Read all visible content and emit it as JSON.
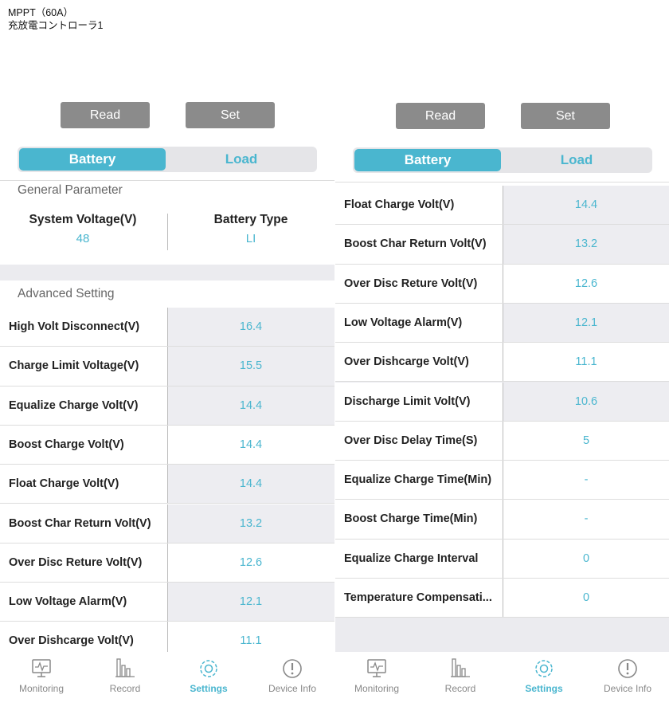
{
  "header": {
    "line1": "MPPT（60A）",
    "line2": "充放電コントローラ1"
  },
  "screens": [
    {
      "buttons": [
        "Read",
        "Set"
      ],
      "tabs": [
        "Battery",
        "Load"
      ],
      "general": {
        "title": "General Parameter",
        "items": [
          {
            "label": "System Voltage(V)",
            "value": "48"
          },
          {
            "label": "Battery Type",
            "value": "LI"
          }
        ]
      },
      "advanced_title": "Advanced Setting",
      "rows": [
        {
          "label": "High Volt Disconnect(V)",
          "value": "16.4"
        },
        {
          "label": "Charge Limit Voltage(V)",
          "value": "15.5"
        },
        {
          "label": "Equalize Charge Volt(V)",
          "value": "14.4"
        },
        {
          "label": "Boost Charge Volt(V)",
          "value": "14.4"
        },
        {
          "label": "Float Charge Volt(V)",
          "value": "14.4"
        },
        {
          "label": "Boost Char Return Volt(V)",
          "value": "13.2"
        },
        {
          "label": "Over Disc Reture Volt(V)",
          "value": "12.6"
        },
        {
          "label": "Low Voltage Alarm(V)",
          "value": "12.1"
        },
        {
          "label": "Over Dishcarge Volt(V)",
          "value": "11.1"
        }
      ],
      "nav": [
        "Monitoring",
        "Record",
        "Settings",
        "Device Info"
      ]
    },
    {
      "buttons": [
        "Read",
        "Set"
      ],
      "tabs": [
        "Battery",
        "Load"
      ],
      "rows": [
        {
          "label": "Float Charge Volt(V)",
          "value": "14.4"
        },
        {
          "label": "Boost Char Return Volt(V)",
          "value": "13.2"
        },
        {
          "label": "Over Disc Reture Volt(V)",
          "value": "12.6"
        },
        {
          "label": "Low Voltage Alarm(V)",
          "value": "12.1"
        },
        {
          "label": "Over Dishcarge Volt(V)",
          "value": "11.1"
        },
        {
          "label": "Discharge Limit Volt(V)",
          "value": "10.6"
        },
        {
          "label": "Over Disc Delay Time(S)",
          "value": "5"
        },
        {
          "label": "Equalize Charge Time(Min)",
          "value": "-"
        },
        {
          "label": "Boost Charge Time(Min)",
          "value": "-"
        },
        {
          "label": "Equalize Charge Interval",
          "value": "0"
        },
        {
          "label": "Temperature Compensati...",
          "value": "0"
        }
      ],
      "nav": [
        "Monitoring",
        "Record",
        "Settings",
        "Device Info"
      ]
    }
  ]
}
